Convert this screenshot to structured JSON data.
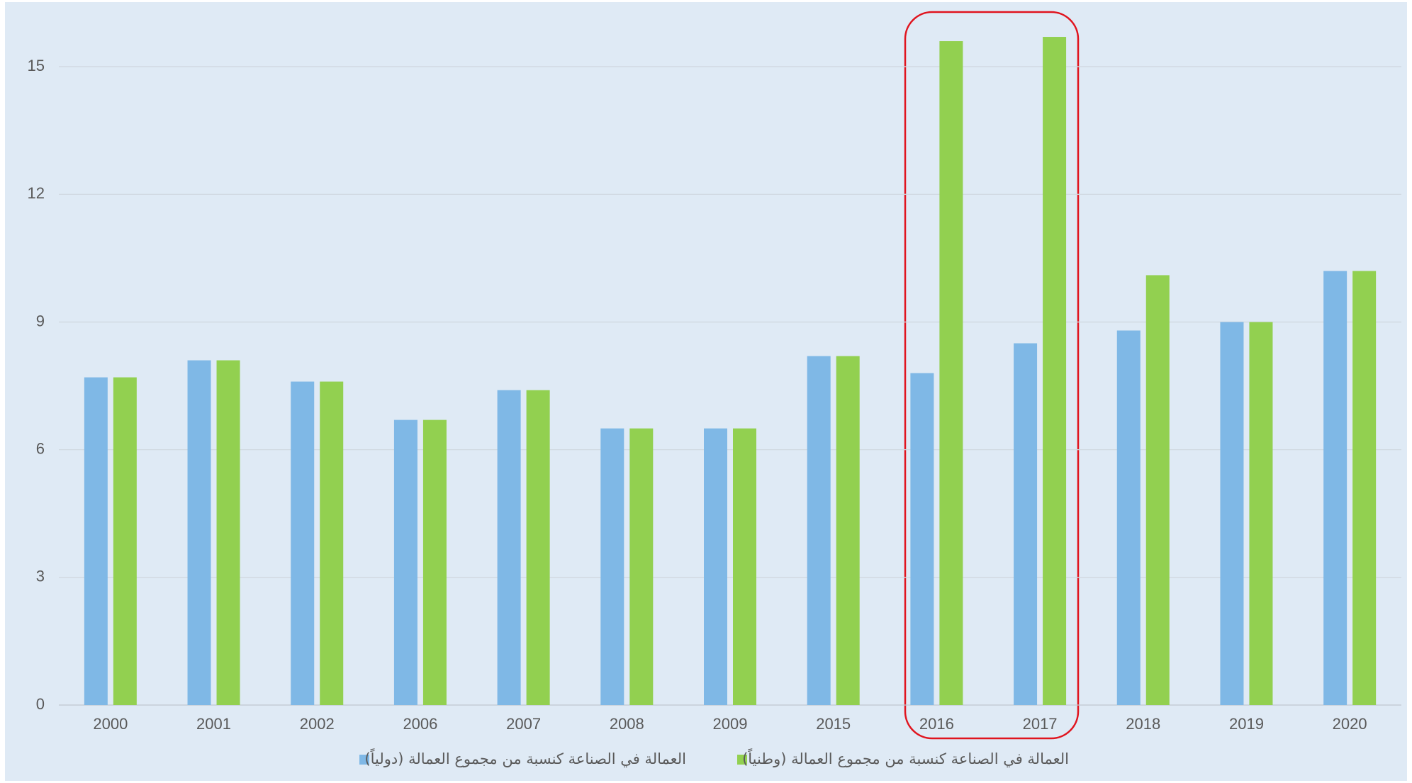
{
  "chart_data": {
    "type": "bar",
    "categories": [
      "2000",
      "2001",
      "2002",
      "2006",
      "2007",
      "2008",
      "2009",
      "2015",
      "2016",
      "2017",
      "2018",
      "2019",
      "2020"
    ],
    "series": [
      {
        "name": "العمالة في الصناعة كنسبة من مجموع العمالة (دولياً)",
        "color": "#7fb8e6",
        "values": [
          7.7,
          8.1,
          7.6,
          6.7,
          7.4,
          6.5,
          6.5,
          8.2,
          7.8,
          8.5,
          8.8,
          9.0,
          10.2
        ]
      },
      {
        "name": "العمالة في الصناعة كنسبة من مجموع العمالة (وطنياً)",
        "color": "#92d050",
        "values": [
          7.7,
          8.1,
          7.6,
          6.7,
          7.4,
          6.5,
          6.5,
          8.2,
          15.6,
          15.7,
          10.1,
          9.0,
          10.2
        ]
      }
    ],
    "ylim": [
      0,
      16.3
    ],
    "yticks": [
      0,
      3,
      6,
      9,
      12,
      15
    ],
    "grid": true,
    "legend": "bottom"
  }
}
